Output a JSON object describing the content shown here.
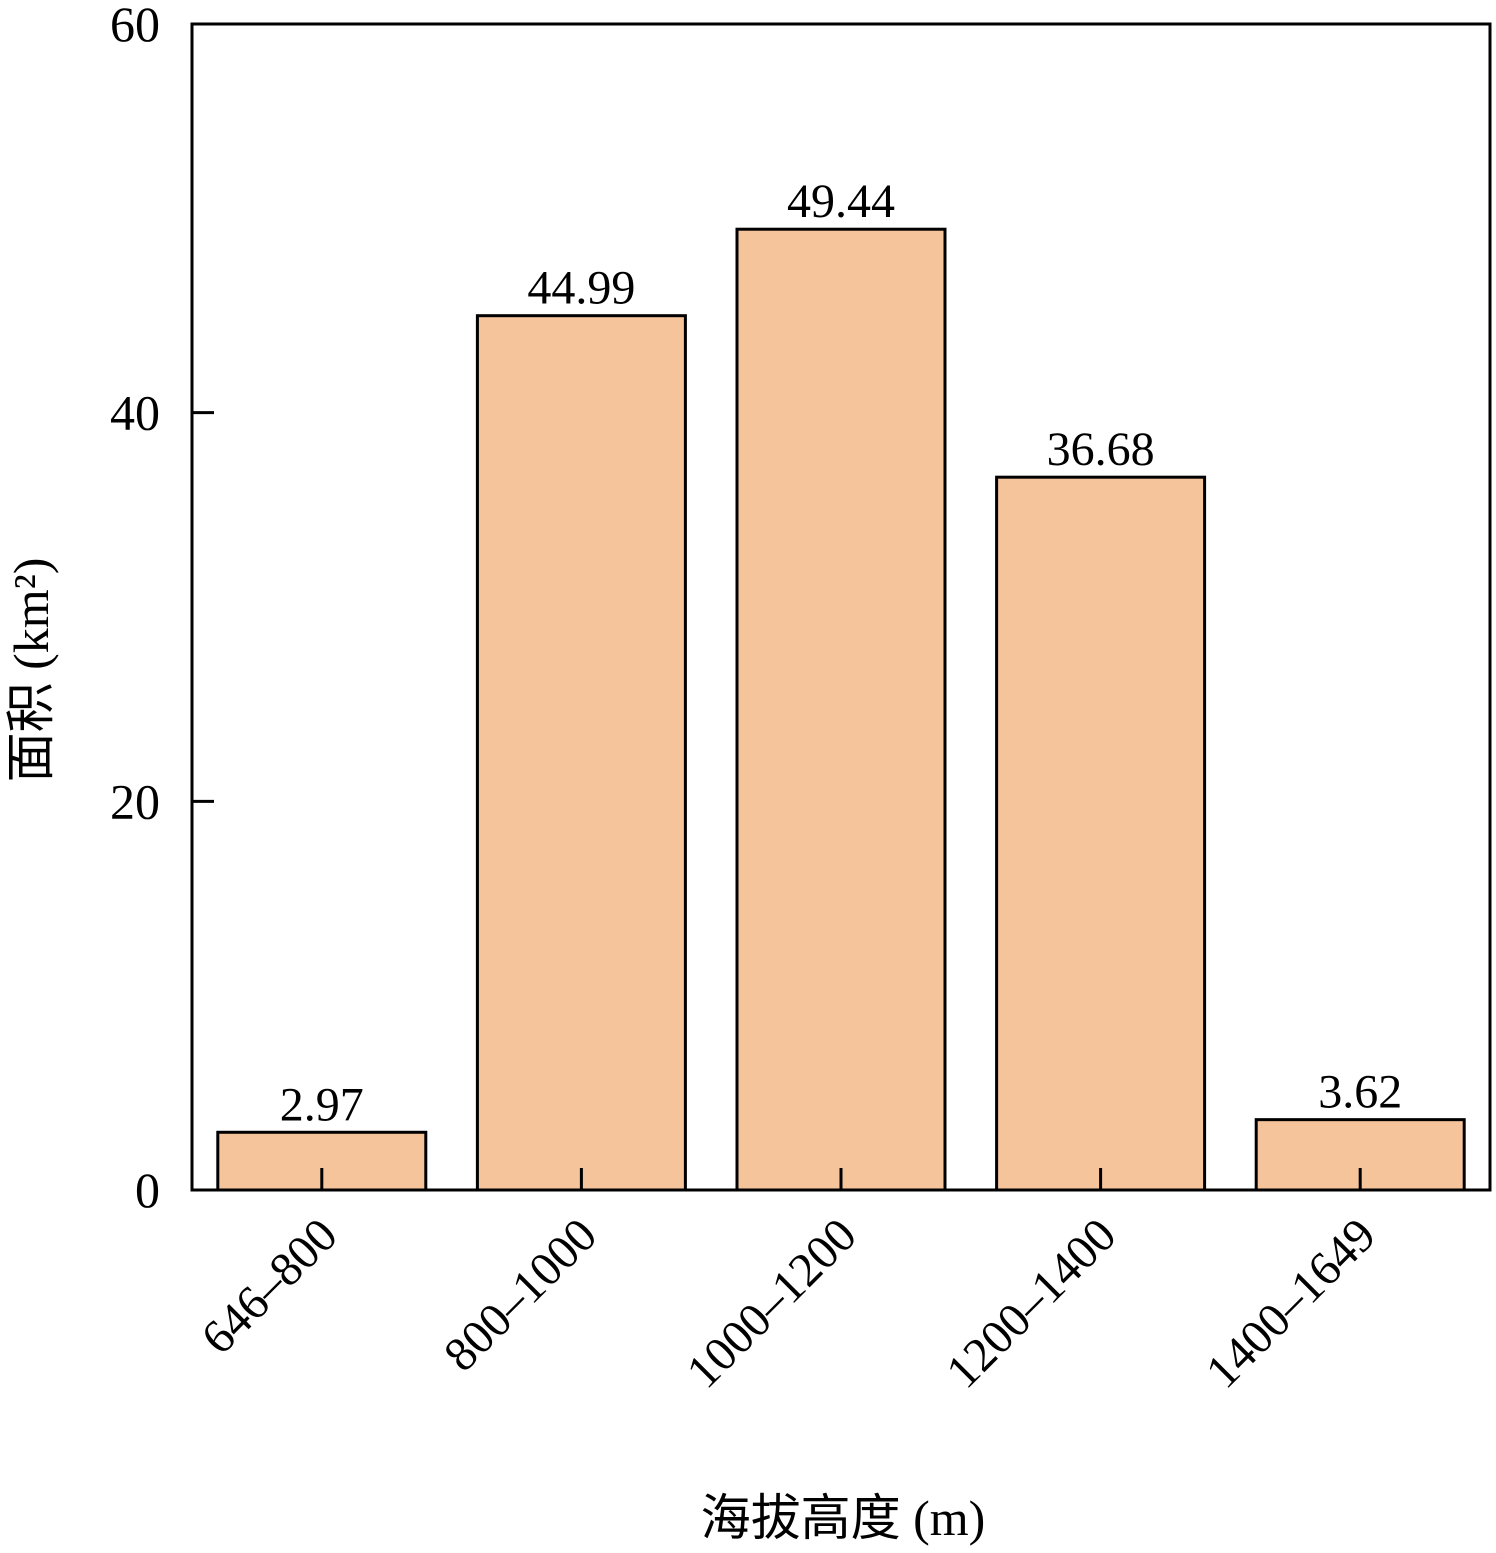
{
  "chart_data": {
    "type": "bar",
    "title": "",
    "xlabel": "海拔高度 (m)",
    "ylabel": "面积 (km²)",
    "categories": [
      "646–800",
      "800–1000",
      "1000–1200",
      "1200–1400",
      "1400–1649"
    ],
    "values": [
      2.97,
      44.99,
      49.44,
      36.68,
      3.62
    ],
    "data_labels": [
      "2.97",
      "44.99",
      "49.44",
      "36.68",
      "3.62"
    ],
    "ylim": [
      0,
      60
    ],
    "yticks": [
      0,
      20,
      40,
      60
    ],
    "ytick_labels": [
      "0",
      "20",
      "40",
      "60"
    ],
    "grid": false,
    "legend": "none",
    "bar_color": "#f5c49b",
    "bar_edge_color": "#000000"
  }
}
